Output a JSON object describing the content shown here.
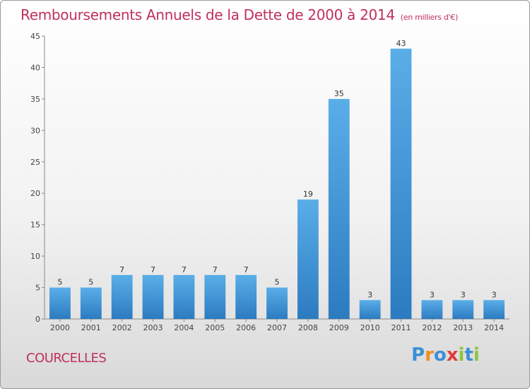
{
  "chart_data": {
    "type": "bar",
    "title": "Remboursements Annuels de la Dette de 2000 à 2014",
    "subtitle": "(en milliers d'€)",
    "categories": [
      "2000",
      "2001",
      "2002",
      "2003",
      "2004",
      "2005",
      "2006",
      "2007",
      "2008",
      "2009",
      "2010",
      "2011",
      "2012",
      "2013",
      "2014"
    ],
    "values": [
      5,
      5,
      7,
      7,
      7,
      7,
      7,
      5,
      19,
      35,
      3,
      43,
      3,
      3,
      3
    ],
    "ylim": [
      0,
      45
    ],
    "yticks": [
      0,
      5,
      10,
      15,
      20,
      25,
      30,
      35,
      40,
      45
    ],
    "grid": false,
    "colors": {
      "bar": "#3a8fd6",
      "title": "#c0305a"
    }
  },
  "footer": {
    "city": "COURCELLES",
    "logo": {
      "letters": [
        "P",
        "r",
        "o",
        "x",
        "i",
        "t",
        "i"
      ],
      "colors": [
        "#3a8fd6",
        "#f28c1e",
        "#3a8fd6",
        "#e03c3c",
        "#8cc63f",
        "#3a8fd6",
        "#8cc63f"
      ]
    }
  }
}
